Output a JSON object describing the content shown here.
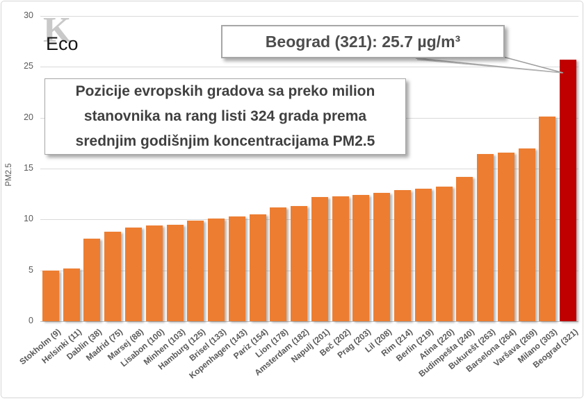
{
  "logo": {
    "glyph": "K",
    "text": "Eco"
  },
  "callout": {
    "text": "Beograd (321): 25.7 µg/m³"
  },
  "annotation": {
    "text": "Pozicije evropskih gradova sa preko milion\nstanovnika na rang listi 324 grada prema\nsrednjim godišnjim koncentracijama PM2.5"
  },
  "chart_data": {
    "type": "bar",
    "title": "",
    "xlabel": "",
    "ylabel": "PM2.5",
    "ylim": [
      0,
      30
    ],
    "ytick_step": 5,
    "grid": true,
    "legend": false,
    "categories": [
      "Stokholm (9)",
      "Helsinki (11)",
      "Dablin (38)",
      "Madrid (75)",
      "Marsej (88)",
      "Lisabon (100)",
      "Minhen (103)",
      "Hamburg (125)",
      "Brisel (133)",
      "Kopenhagen (143)",
      "Pariz (154)",
      "Lion (178)",
      "Amsterdam (182)",
      "Napulj (201)",
      "Beč (202)",
      "Prag (203)",
      "Lil (208)",
      "Rim (214)",
      "Berlin (219)",
      "Atina (220)",
      "Budimpešta (240)",
      "Bukurešt (263)",
      "Barselona (264)",
      "Varšava (269)",
      "Milano (303)",
      "Beograd (321)"
    ],
    "values": [
      5.0,
      5.2,
      8.1,
      8.8,
      9.2,
      9.4,
      9.5,
      9.9,
      10.1,
      10.3,
      10.5,
      11.2,
      11.3,
      12.2,
      12.3,
      12.4,
      12.6,
      12.9,
      13.0,
      13.2,
      14.2,
      16.4,
      16.6,
      17.0,
      20.1,
      25.7
    ],
    "bar_color": "#ED7D31",
    "highlight_color": "#C00000",
    "highlight_index": 25,
    "highlight_annotation": "Beograd (321): 25.7 µg/m³"
  }
}
